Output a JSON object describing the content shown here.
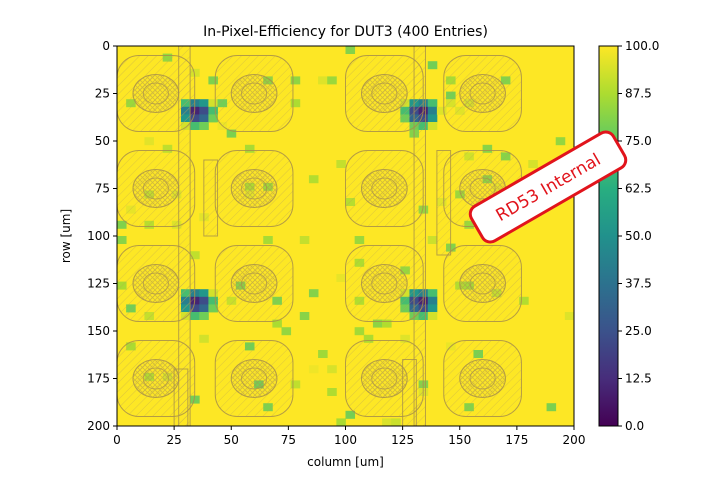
{
  "chart_data": {
    "type": "heatmap",
    "title": "In-Pixel-Efficiency for DUT3 (400 Entries)",
    "xlabel": "column [um]",
    "ylabel": "row [um]",
    "xlim": [
      0,
      200
    ],
    "ylim": [
      200,
      0
    ],
    "x_ticks": [
      "0",
      "25",
      "50",
      "75",
      "100",
      "125",
      "150",
      "175",
      "200"
    ],
    "y_ticks": [
      "0",
      "25",
      "50",
      "75",
      "100",
      "125",
      "150",
      "175",
      "200"
    ],
    "colorbar": {
      "min": 0,
      "max": 100,
      "colormap": "viridis",
      "ticks": [
        "0.0",
        "12.5",
        "25.0",
        "37.5",
        "50.0",
        "62.5",
        "75.0",
        "87.5",
        "100.0"
      ]
    },
    "background_value": 100,
    "low_efficiency_regions": [
      {
        "x": 35,
        "y": 35,
        "min_value": 5
      },
      {
        "x": 133,
        "y": 35,
        "min_value": 5
      },
      {
        "x": 35,
        "y": 135,
        "min_value": 5
      },
      {
        "x": 133,
        "y": 135,
        "min_value": 5
      }
    ],
    "colors": {
      "high": "#fde725",
      "low": "#440154",
      "overlay": "#b8a05a"
    }
  },
  "watermark": {
    "text": "RD53 Internal",
    "color": "#e1141c"
  }
}
